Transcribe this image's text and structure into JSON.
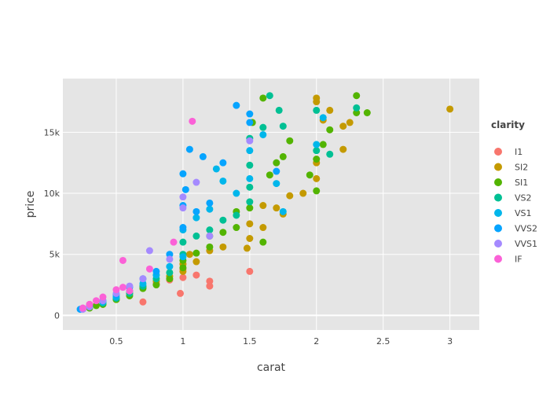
{
  "chart_data": {
    "type": "scatter",
    "title": "",
    "xlabel": "carat",
    "ylabel": "price",
    "xlim": [
      0.1,
      3.22
    ],
    "ylim": [
      -1200,
      19400
    ],
    "x_ticks": [
      {
        "value": 0.5,
        "label": "0.5"
      },
      {
        "value": 1,
        "label": "1"
      },
      {
        "value": 1.5,
        "label": "1.5"
      },
      {
        "value": 2,
        "label": "2"
      },
      {
        "value": 2.5,
        "label": "2.5"
      },
      {
        "value": 3,
        "label": "3"
      }
    ],
    "y_ticks": [
      {
        "value": 0,
        "label": "0"
      },
      {
        "value": 5000,
        "label": "5k"
      },
      {
        "value": 10000,
        "label": "10k"
      },
      {
        "value": 15000,
        "label": "15k"
      }
    ],
    "grid": true,
    "legend": {
      "title": "clarity",
      "placement": "right"
    },
    "series": [
      {
        "name": "I1",
        "color": "#F8766D",
        "points": [
          [
            0.3,
            900
          ],
          [
            0.4,
            1100
          ],
          [
            0.7,
            1100
          ],
          [
            0.7,
            2300
          ],
          [
            0.8,
            2600
          ],
          [
            0.9,
            2900
          ],
          [
            0.98,
            1800
          ],
          [
            1.0,
            3100
          ],
          [
            1.1,
            3300
          ],
          [
            1.2,
            2400
          ],
          [
            1.2,
            2800
          ],
          [
            1.5,
            3600
          ],
          [
            1.0,
            3800
          ]
        ]
      },
      {
        "name": "SI2",
        "color": "#C49A00",
        "points": [
          [
            0.3,
            700
          ],
          [
            0.4,
            900
          ],
          [
            0.5,
            1300
          ],
          [
            0.6,
            1800
          ],
          [
            0.7,
            2300
          ],
          [
            0.8,
            2800
          ],
          [
            0.9,
            3200
          ],
          [
            1.0,
            3600
          ],
          [
            1.0,
            4200
          ],
          [
            1.05,
            5000
          ],
          [
            1.1,
            4400
          ],
          [
            1.2,
            5300
          ],
          [
            1.3,
            5600
          ],
          [
            1.48,
            5500
          ],
          [
            1.5,
            6300
          ],
          [
            1.5,
            7500
          ],
          [
            1.6,
            7200
          ],
          [
            1.6,
            9000
          ],
          [
            1.7,
            8800
          ],
          [
            1.75,
            8300
          ],
          [
            1.8,
            9800
          ],
          [
            1.9,
            10000
          ],
          [
            2.0,
            11200
          ],
          [
            2.0,
            12500
          ],
          [
            2.0,
            17500
          ],
          [
            2.0,
            17800
          ],
          [
            2.05,
            16000
          ],
          [
            2.1,
            16800
          ],
          [
            2.2,
            13600
          ],
          [
            2.2,
            15500
          ],
          [
            2.25,
            15800
          ],
          [
            3.0,
            16900
          ]
        ]
      },
      {
        "name": "SI1",
        "color": "#53B400",
        "points": [
          [
            0.3,
            600
          ],
          [
            0.35,
            800
          ],
          [
            0.4,
            900
          ],
          [
            0.5,
            1300
          ],
          [
            0.6,
            1600
          ],
          [
            0.7,
            2200
          ],
          [
            0.8,
            2500
          ],
          [
            0.9,
            3000
          ],
          [
            1.0,
            3900
          ],
          [
            1.0,
            4500
          ],
          [
            1.1,
            5100
          ],
          [
            1.2,
            5600
          ],
          [
            1.2,
            6500
          ],
          [
            1.3,
            6800
          ],
          [
            1.4,
            7200
          ],
          [
            1.4,
            8500
          ],
          [
            1.5,
            8800
          ],
          [
            1.6,
            6000
          ],
          [
            1.65,
            11500
          ],
          [
            1.7,
            12500
          ],
          [
            1.75,
            13000
          ],
          [
            1.8,
            14300
          ],
          [
            1.95,
            11500
          ],
          [
            2.0,
            10200
          ],
          [
            2.0,
            12800
          ],
          [
            2.05,
            14000
          ],
          [
            2.1,
            15200
          ],
          [
            2.3,
            16600
          ],
          [
            2.3,
            18000
          ],
          [
            2.38,
            16600
          ],
          [
            1.6,
            17800
          ],
          [
            1.52,
            15800
          ]
        ]
      },
      {
        "name": "VS2",
        "color": "#00C094",
        "points": [
          [
            0.3,
            700
          ],
          [
            0.4,
            1000
          ],
          [
            0.5,
            1400
          ],
          [
            0.6,
            1800
          ],
          [
            0.7,
            2400
          ],
          [
            0.8,
            3000
          ],
          [
            0.9,
            3500
          ],
          [
            1.0,
            5000
          ],
          [
            1.0,
            6000
          ],
          [
            1.1,
            6500
          ],
          [
            1.2,
            7000
          ],
          [
            1.3,
            7800
          ],
          [
            1.4,
            8200
          ],
          [
            1.5,
            9300
          ],
          [
            1.5,
            10500
          ],
          [
            1.5,
            12300
          ],
          [
            1.5,
            14500
          ],
          [
            1.6,
            15400
          ],
          [
            1.65,
            18000
          ],
          [
            1.72,
            16800
          ],
          [
            1.75,
            15500
          ],
          [
            2.0,
            13500
          ],
          [
            2.0,
            16800
          ],
          [
            2.1,
            13200
          ],
          [
            2.3,
            17000
          ]
        ]
      },
      {
        "name": "VS1",
        "color": "#00B6EB",
        "points": [
          [
            0.3,
            800
          ],
          [
            0.4,
            1100
          ],
          [
            0.5,
            1500
          ],
          [
            0.6,
            2000
          ],
          [
            0.7,
            2600
          ],
          [
            0.8,
            3300
          ],
          [
            0.9,
            4000
          ],
          [
            1.0,
            4800
          ],
          [
            1.0,
            7000
          ],
          [
            1.1,
            8000
          ],
          [
            1.2,
            8700
          ],
          [
            1.25,
            12000
          ],
          [
            1.3,
            11000
          ],
          [
            1.4,
            10000
          ],
          [
            1.5,
            11200
          ],
          [
            1.5,
            13500
          ],
          [
            1.6,
            14800
          ],
          [
            1.7,
            10800
          ],
          [
            1.75,
            8500
          ],
          [
            2.0,
            14000
          ],
          [
            2.05,
            16200
          ]
        ]
      },
      {
        "name": "VVS2",
        "color": "#06A4FF",
        "points": [
          [
            0.23,
            500
          ],
          [
            0.3,
            800
          ],
          [
            0.4,
            1200
          ],
          [
            0.5,
            1700
          ],
          [
            0.6,
            2300
          ],
          [
            0.7,
            3000
          ],
          [
            0.8,
            3600
          ],
          [
            0.9,
            5000
          ],
          [
            1.0,
            7200
          ],
          [
            1.0,
            9000
          ],
          [
            1.02,
            10300
          ],
          [
            1.0,
            11600
          ],
          [
            1.05,
            13600
          ],
          [
            1.1,
            8500
          ],
          [
            1.15,
            13000
          ],
          [
            1.2,
            9200
          ],
          [
            1.3,
            12500
          ],
          [
            1.4,
            17200
          ],
          [
            1.5,
            16500
          ],
          [
            1.5,
            15800
          ],
          [
            1.7,
            11800
          ]
        ]
      },
      {
        "name": "VVS1",
        "color": "#A58AFF",
        "points": [
          [
            0.25,
            500
          ],
          [
            0.3,
            700
          ],
          [
            0.4,
            1200
          ],
          [
            0.5,
            1800
          ],
          [
            0.6,
            2400
          ],
          [
            0.7,
            3000
          ],
          [
            0.75,
            5300
          ],
          [
            0.9,
            4600
          ],
          [
            1.0,
            8800
          ],
          [
            1.0,
            9700
          ],
          [
            1.1,
            10900
          ],
          [
            1.2,
            6500
          ],
          [
            1.5,
            14300
          ]
        ]
      },
      {
        "name": "IF",
        "color": "#FB61D7",
        "points": [
          [
            0.25,
            600
          ],
          [
            0.3,
            900
          ],
          [
            0.35,
            1200
          ],
          [
            0.4,
            1500
          ],
          [
            0.5,
            2100
          ],
          [
            0.55,
            2300
          ],
          [
            0.6,
            2000
          ],
          [
            0.55,
            4500
          ],
          [
            0.75,
            3800
          ],
          [
            0.93,
            6000
          ],
          [
            1.07,
            15900
          ]
        ]
      }
    ]
  }
}
